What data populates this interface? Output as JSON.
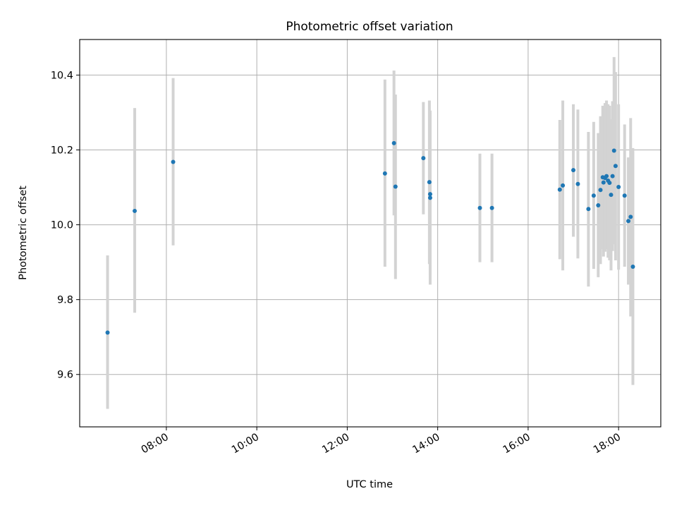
{
  "chart_data": {
    "type": "scatter",
    "title": "Photometric offset variation",
    "xlabel": "UTC time",
    "ylabel": "Photometric offset",
    "xlim": [
      "06:05",
      "18:56"
    ],
    "ylim": [
      9.46,
      10.495
    ],
    "x_ticks": [
      "08:00",
      "10:00",
      "12:00",
      "14:00",
      "16:00",
      "18:00"
    ],
    "y_ticks": [
      "9.6",
      "9.8",
      "10.0",
      "10.2",
      "10.4"
    ],
    "grid": true,
    "marker_color": "#1f77b4",
    "errorbar_color": "#d3d3d3",
    "series": [
      {
        "points": [
          {
            "x": "06:42",
            "y": 9.712,
            "lo": 9.508,
            "hi": 9.918
          },
          {
            "x": "07:18",
            "y": 10.037,
            "lo": 9.765,
            "hi": 10.312
          },
          {
            "x": "08:09",
            "y": 10.168,
            "lo": 9.945,
            "hi": 10.392
          },
          {
            "x": "12:50",
            "y": 10.137,
            "lo": 9.888,
            "hi": 10.388
          },
          {
            "x": "13:02",
            "y": 10.218,
            "lo": 10.025,
            "hi": 10.412
          },
          {
            "x": "13:04",
            "y": 10.102,
            "lo": 9.855,
            "hi": 10.348
          },
          {
            "x": "13:41",
            "y": 10.178,
            "lo": 10.028,
            "hi": 10.328
          },
          {
            "x": "13:49",
            "y": 10.114,
            "lo": 9.895,
            "hi": 10.332
          },
          {
            "x": "13:50",
            "y": 10.082,
            "lo": 9.865,
            "hi": 10.3
          },
          {
            "x": "13:50",
            "y": 10.072,
            "lo": 9.84,
            "hi": 10.305
          },
          {
            "x": "14:56",
            "y": 10.045,
            "lo": 9.9,
            "hi": 10.19
          },
          {
            "x": "15:12",
            "y": 10.045,
            "lo": 9.9,
            "hi": 10.19
          },
          {
            "x": "16:42",
            "y": 10.094,
            "lo": 9.908,
            "hi": 10.28
          },
          {
            "x": "16:46",
            "y": 10.105,
            "lo": 9.878,
            "hi": 10.332
          },
          {
            "x": "17:00",
            "y": 10.146,
            "lo": 9.968,
            "hi": 10.322
          },
          {
            "x": "17:06",
            "y": 10.109,
            "lo": 9.91,
            "hi": 10.308
          },
          {
            "x": "17:20",
            "y": 10.042,
            "lo": 9.835,
            "hi": 10.248
          },
          {
            "x": "17:27",
            "y": 10.078,
            "lo": 9.882,
            "hi": 10.275
          },
          {
            "x": "17:33",
            "y": 10.052,
            "lo": 9.86,
            "hi": 10.245
          },
          {
            "x": "17:36",
            "y": 10.093,
            "lo": 9.895,
            "hi": 10.29
          },
          {
            "x": "17:39",
            "y": 10.127,
            "lo": 9.935,
            "hi": 10.318
          },
          {
            "x": "17:40",
            "y": 10.113,
            "lo": 9.915,
            "hi": 10.31
          },
          {
            "x": "17:42",
            "y": 10.125,
            "lo": 9.928,
            "hi": 10.325
          },
          {
            "x": "17:44",
            "y": 10.13,
            "lo": 9.935,
            "hi": 10.332
          },
          {
            "x": "17:46",
            "y": 10.118,
            "lo": 9.912,
            "hi": 10.322
          },
          {
            "x": "17:48",
            "y": 10.112,
            "lo": 9.905,
            "hi": 10.318
          },
          {
            "x": "17:50",
            "y": 10.08,
            "lo": 9.878,
            "hi": 10.282
          },
          {
            "x": "17:52",
            "y": 10.13,
            "lo": 9.93,
            "hi": 10.33
          },
          {
            "x": "17:54",
            "y": 10.198,
            "lo": 9.948,
            "hi": 10.448
          },
          {
            "x": "17:56",
            "y": 10.157,
            "lo": 9.905,
            "hi": 10.408
          },
          {
            "x": "18:00",
            "y": 10.101,
            "lo": 9.88,
            "hi": 10.322
          },
          {
            "x": "18:08",
            "y": 10.078,
            "lo": 9.888,
            "hi": 10.268
          },
          {
            "x": "18:13",
            "y": 10.01,
            "lo": 9.84,
            "hi": 10.18
          },
          {
            "x": "18:16",
            "y": 10.021,
            "lo": 9.755,
            "hi": 10.285
          },
          {
            "x": "18:19",
            "y": 9.888,
            "lo": 9.572,
            "hi": 10.205
          }
        ]
      }
    ]
  }
}
